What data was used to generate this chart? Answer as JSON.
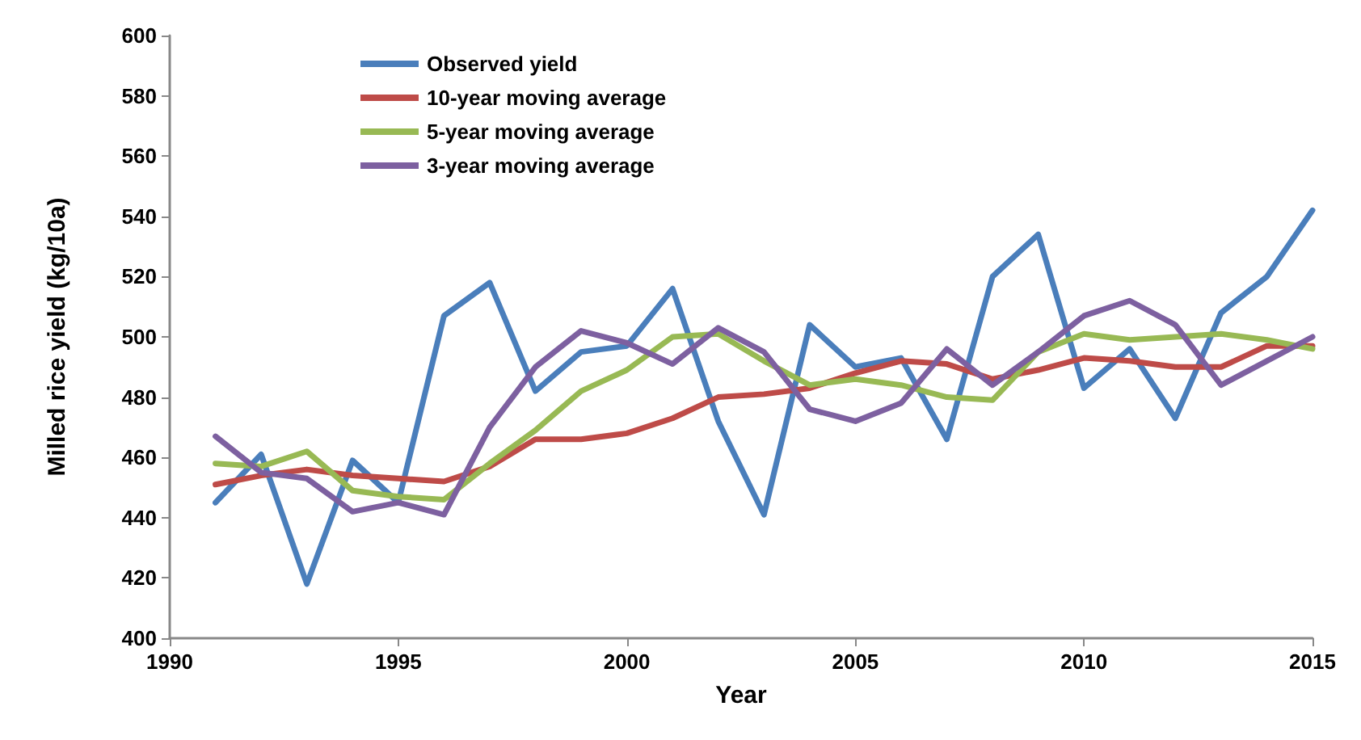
{
  "chart_data": {
    "type": "line",
    "xlabel": "Year",
    "ylabel": "Milled rice yield (kg/10a)",
    "x": [
      1991,
      1992,
      1993,
      1994,
      1995,
      1996,
      1997,
      1998,
      1999,
      2000,
      2001,
      2002,
      2003,
      2004,
      2005,
      2006,
      2007,
      2008,
      2009,
      2010,
      2011,
      2012,
      2013,
      2014,
      2015
    ],
    "series": [
      {
        "name": "Observed yield",
        "color": "#4a7ebb",
        "values": [
          445,
          461,
          418,
          459,
          445,
          507,
          518,
          482,
          495,
          497,
          516,
          472,
          441,
          504,
          490,
          493,
          466,
          520,
          534,
          483,
          496,
          473,
          508,
          520,
          542
        ]
      },
      {
        "name": "10-year moving average",
        "color": "#be4b48",
        "values": [
          451,
          454,
          456,
          454,
          453,
          452,
          457,
          466,
          466,
          468,
          473,
          480,
          481,
          483,
          488,
          492,
          491,
          486,
          489,
          493,
          492,
          490,
          490,
          497,
          497
        ]
      },
      {
        "name": "5-year moving average",
        "color": "#98b954",
        "values": [
          458,
          457,
          462,
          449,
          447,
          446,
          458,
          469,
          482,
          489,
          500,
          501,
          492,
          484,
          486,
          484,
          480,
          479,
          495,
          501,
          499,
          500,
          501,
          499,
          496
        ]
      },
      {
        "name": "3-year moving average",
        "color": "#7d60a0",
        "values": [
          467,
          455,
          453,
          442,
          445,
          441,
          470,
          490,
          502,
          498,
          491,
          503,
          495,
          476,
          472,
          478,
          496,
          484,
          495,
          507,
          512,
          504,
          484,
          492,
          500
        ]
      }
    ],
    "xlim": [
      1990,
      2015
    ],
    "xticks": [
      1990,
      1995,
      2000,
      2005,
      2010,
      2015
    ],
    "ylim": [
      400,
      600
    ],
    "yticks": [
      400,
      420,
      440,
      460,
      480,
      500,
      520,
      540,
      560,
      580,
      600
    ],
    "grid": false,
    "legend": "top left",
    "marker": "none",
    "line_style": "solid"
  }
}
